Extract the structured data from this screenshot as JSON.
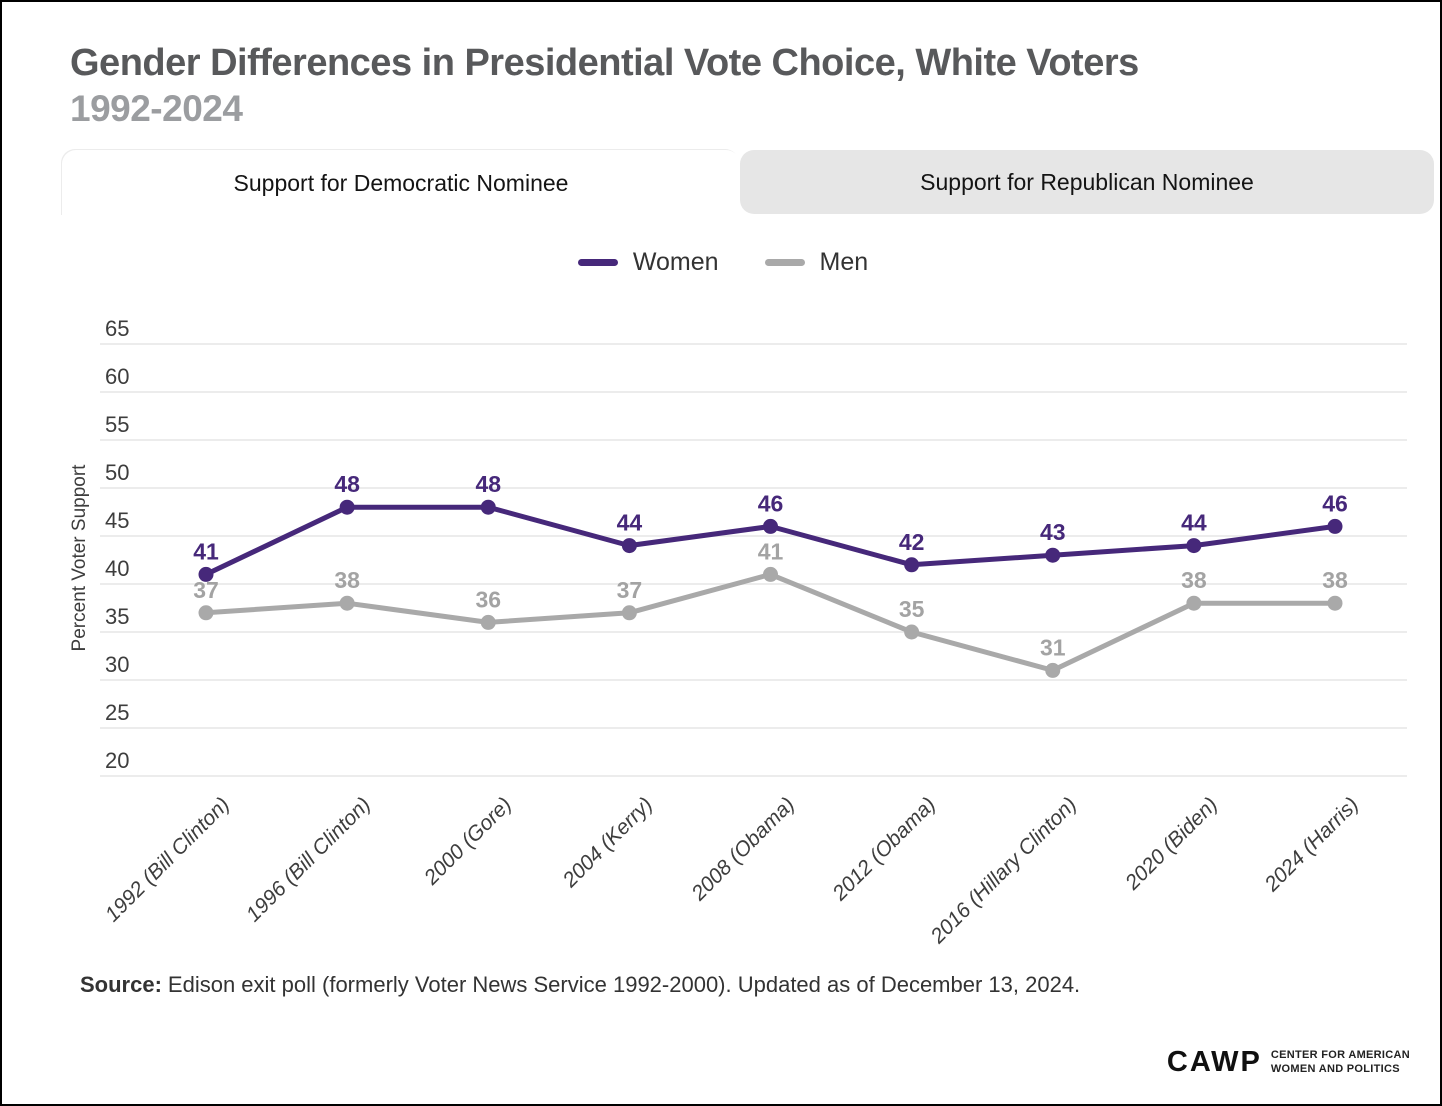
{
  "page": {
    "title": "Gender Differences in Presidential Vote Choice, White Voters",
    "subtitle": "1992-2024"
  },
  "tabs": [
    {
      "label": "Support for Democratic Nominee",
      "active": true
    },
    {
      "label": "Support for Republican Nominee",
      "active": false
    }
  ],
  "legend": [
    {
      "label": "Women",
      "color": "#46287a"
    },
    {
      "label": "Men",
      "color": "#a9a9a9"
    }
  ],
  "chart_data": {
    "type": "line",
    "title": "Support for Democratic Nominee",
    "categories": [
      "1992 (Bill Clinton)",
      "1996 (Bill Clinton)",
      "2000 (Gore)",
      "2004 (Kerry)",
      "2008 (Obama)",
      "2012 (Obama)",
      "2016 (Hillary Clinton)",
      "2020 (Biden)",
      "2024 (Harris)"
    ],
    "series": [
      {
        "name": "Women",
        "color": "#46287a",
        "label_color": "#46287a",
        "values": [
          41,
          48,
          48,
          44,
          46,
          42,
          43,
          44,
          46
        ]
      },
      {
        "name": "Men",
        "color": "#a9a9a9",
        "label_color": "#a3a3a3",
        "values": [
          37,
          38,
          36,
          37,
          41,
          35,
          31,
          38,
          38
        ]
      }
    ],
    "xlabel": "",
    "ylabel": "Percent Voter Support",
    "yticks": [
      65,
      60,
      55,
      50,
      45,
      40,
      35,
      30,
      25,
      20
    ],
    "ylim": [
      20,
      65
    ],
    "grid": true,
    "gridline_color": "#ececec",
    "legend_position": "top"
  },
  "source": {
    "label": "Source:",
    "text": "Edison exit poll (formerly Voter News Service 1992-2000). Updated as of December 13, 2024."
  },
  "logo": {
    "acronym": "CAWP",
    "line1": "CENTER FOR AMERICAN",
    "line2": "WOMEN AND POLITICS"
  }
}
